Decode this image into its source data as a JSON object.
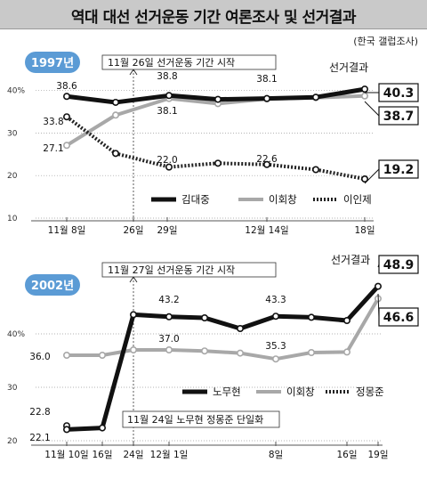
{
  "title": "역대 대선 선거운동 기간 여론조사 및 선거결과",
  "source": "(한국 갤럽조사)",
  "colors": {
    "c0": "#111111",
    "c1": "#a8a8a8",
    "c2": "#222222",
    "badge": "#5b9bd5"
  },
  "chart_data": [
    {
      "type": "line",
      "year_label": "1997년",
      "y_ticks": [
        "40%",
        "30",
        "20",
        "10"
      ],
      "ylim": [
        10,
        42
      ],
      "x_ticks": [
        "11월 8일",
        "26일",
        "29일",
        "12월 14일",
        "18일"
      ],
      "annotation": "11월 26일 선거운동 기간 시작",
      "result_label": "선거결과",
      "series": [
        {
          "name": "김대중",
          "style": "solid-black",
          "points": [
            [
              0,
              38.6
            ],
            [
              1,
              37.2
            ],
            [
              2,
              38.8
            ],
            [
              3,
              37.9
            ],
            [
              4,
              38.1
            ],
            [
              5,
              38.4
            ],
            [
              6,
              40.3
            ]
          ],
          "labels": [
            "38.6",
            "38.8",
            "38.1",
            "40.3"
          ]
        },
        {
          "name": "이회창",
          "style": "solid-gray",
          "points": [
            [
              0,
              27.1
            ],
            [
              1,
              34.2
            ],
            [
              2,
              38.1
            ],
            [
              3,
              36.9
            ],
            [
              4,
              38.0
            ],
            [
              5,
              38.3
            ],
            [
              6,
              38.7
            ]
          ],
          "labels": [
            "27.1",
            "38.1",
            "38.7"
          ]
        },
        {
          "name": "이인제",
          "style": "dotted",
          "points": [
            [
              0,
              33.8
            ],
            [
              1,
              25.2
            ],
            [
              2,
              22.0
            ],
            [
              3,
              22.9
            ],
            [
              4,
              22.6
            ],
            [
              5,
              21.4
            ],
            [
              6,
              19.2
            ]
          ],
          "labels": [
            "33.8",
            "22.0",
            "22.6",
            "19.2"
          ]
        }
      ]
    },
    {
      "type": "line",
      "year_label": "2002년",
      "y_ticks": [
        "40%",
        "30",
        "20"
      ],
      "ylim": [
        20,
        50
      ],
      "x_ticks": [
        "11월 10일",
        "16일",
        "24일",
        "12월 1일",
        "8일",
        "16일",
        "19일"
      ],
      "annotation": "11월 27일 선거운동 기간 시작",
      "annotation2": "11월 24일 노무현 정몽준 단일화",
      "result_label": "선거결과",
      "series": [
        {
          "name": "노무현",
          "style": "solid-black",
          "points": [
            [
              0,
              22.1
            ],
            [
              1,
              22.4
            ],
            [
              2,
              43.6
            ],
            [
              3,
              43.2
            ],
            [
              4,
              43.0
            ],
            [
              5,
              41.0
            ],
            [
              6,
              43.3
            ],
            [
              7,
              43.1
            ],
            [
              8,
              42.5
            ],
            [
              9,
              48.9
            ]
          ],
          "labels": [
            "22.1",
            "43.2",
            "43.3",
            "48.9"
          ]
        },
        {
          "name": "이회창",
          "style": "solid-gray",
          "points": [
            [
              0,
              36.0
            ],
            [
              1,
              36.0
            ],
            [
              2,
              37.0
            ],
            [
              3,
              37.0
            ],
            [
              4,
              36.8
            ],
            [
              5,
              36.4
            ],
            [
              6,
              35.3
            ],
            [
              7,
              36.5
            ],
            [
              8,
              36.6
            ],
            [
              9,
              46.6
            ]
          ],
          "labels": [
            "36.0",
            "37.0",
            "35.3",
            "46.6"
          ]
        },
        {
          "name": "정몽준",
          "style": "dotted",
          "points": [
            [
              0,
              22.8
            ]
          ],
          "labels": [
            "22.8"
          ]
        }
      ]
    }
  ]
}
